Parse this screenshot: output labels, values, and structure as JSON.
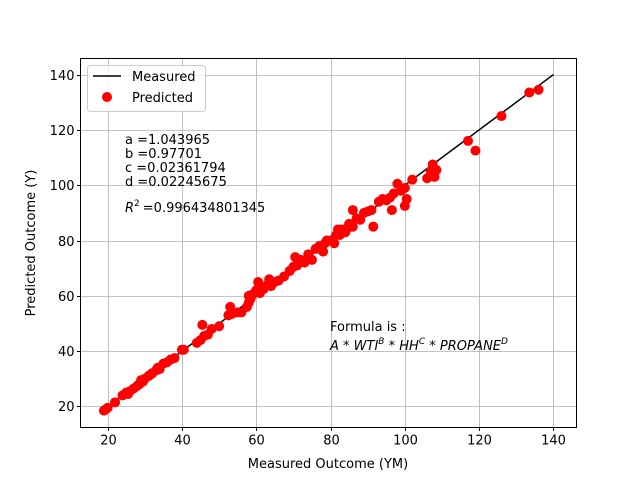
{
  "chart_data": {
    "type": "scatter",
    "xlabel": "Measured Outcome (YM)",
    "ylabel": "Predicted Outcome (Y)",
    "xlim": [
      12.7,
      146.2
    ],
    "ylim": [
      12.4,
      145.8
    ],
    "xticks": [
      20,
      40,
      60,
      80,
      100,
      120,
      140
    ],
    "yticks": [
      20,
      40,
      60,
      80,
      100,
      120,
      140
    ],
    "grid": true,
    "legend": {
      "placement": "top-left",
      "entries": [
        "Measured",
        "Predicted"
      ]
    },
    "colors": {
      "measured": "#000000",
      "predicted": "#ff0000"
    },
    "series": [
      {
        "name": "Measured",
        "kind": "line",
        "x": [
          19,
          140
        ],
        "y": [
          19,
          140
        ]
      },
      {
        "name": "Predicted",
        "kind": "scatter",
        "points": [
          [
            19,
            18.5
          ],
          [
            19.5,
            19
          ],
          [
            20,
            19.5
          ],
          [
            22,
            21.5
          ],
          [
            24,
            24
          ],
          [
            25,
            25
          ],
          [
            25.5,
            24.5
          ],
          [
            26,
            25.5
          ],
          [
            27,
            26.5
          ],
          [
            28,
            27.5
          ],
          [
            28.5,
            28
          ],
          [
            29,
            29.5
          ],
          [
            29.5,
            29
          ],
          [
            30,
            30
          ],
          [
            31,
            31
          ],
          [
            31.5,
            31.5
          ],
          [
            32,
            32
          ],
          [
            33,
            33
          ],
          [
            33.5,
            34
          ],
          [
            34,
            33.5
          ],
          [
            35,
            35.5
          ],
          [
            36,
            36
          ],
          [
            37,
            37
          ],
          [
            38,
            37.5
          ],
          [
            40,
            40.5
          ],
          [
            40.5,
            40.5
          ],
          [
            44,
            43
          ],
          [
            45,
            44
          ],
          [
            45.5,
            49.5
          ],
          [
            46,
            45.5
          ],
          [
            47,
            46
          ],
          [
            48,
            48
          ],
          [
            50,
            49
          ],
          [
            52.5,
            53
          ],
          [
            53,
            56
          ],
          [
            53.5,
            53.5
          ],
          [
            55,
            54
          ],
          [
            56,
            54
          ],
          [
            57.5,
            56
          ],
          [
            58,
            57.5
          ],
          [
            58,
            60
          ],
          [
            58.5,
            59
          ],
          [
            59,
            60.5
          ],
          [
            60,
            62
          ],
          [
            60.5,
            65
          ],
          [
            61,
            61
          ],
          [
            62,
            62.5
          ],
          [
            63,
            64
          ],
          [
            63.5,
            66
          ],
          [
            64,
            63.5
          ],
          [
            65,
            65
          ],
          [
            66,
            65.5
          ],
          [
            67.5,
            67
          ],
          [
            69,
            69
          ],
          [
            70,
            70.5
          ],
          [
            70.5,
            74
          ],
          [
            71,
            71
          ],
          [
            72,
            73
          ],
          [
            73,
            72
          ],
          [
            74,
            75
          ],
          [
            75,
            73
          ],
          [
            76,
            77
          ],
          [
            77,
            78
          ],
          [
            78,
            76
          ],
          [
            78.5,
            79
          ],
          [
            79,
            80
          ],
          [
            80,
            80
          ],
          [
            81,
            79
          ],
          [
            81.5,
            82
          ],
          [
            82,
            84
          ],
          [
            82.5,
            82
          ],
          [
            83,
            84
          ],
          [
            84,
            83
          ],
          [
            84.5,
            84.5
          ],
          [
            85,
            86
          ],
          [
            86,
            85
          ],
          [
            86,
            91
          ],
          [
            87,
            88
          ],
          [
            88,
            87.5
          ],
          [
            89,
            90
          ],
          [
            90,
            90.5
          ],
          [
            91,
            91
          ],
          [
            91.5,
            85
          ],
          [
            93,
            94
          ],
          [
            94,
            95
          ],
          [
            95,
            94.5
          ],
          [
            96,
            95.5
          ],
          [
            96.5,
            91
          ],
          [
            97,
            97
          ],
          [
            98,
            100.5
          ],
          [
            99,
            98
          ],
          [
            100,
            99
          ],
          [
            100,
            92.5
          ],
          [
            100.5,
            95
          ],
          [
            102,
            102
          ],
          [
            106,
            102.5
          ],
          [
            107,
            105
          ],
          [
            107.5,
            107.5
          ],
          [
            108,
            103
          ],
          [
            108.5,
            105.5
          ],
          [
            117,
            116
          ],
          [
            119,
            112.5
          ],
          [
            126,
            125
          ],
          [
            133.5,
            133.5
          ],
          [
            136,
            134.5
          ]
        ]
      }
    ],
    "annotations": {
      "a": "a =1.043965",
      "b": "b =0.97701",
      "c": "c =0.02361794",
      "d": "d =0.02245675",
      "r2_value": "=0.996434801345",
      "formula_label": "Formula is :"
    }
  }
}
